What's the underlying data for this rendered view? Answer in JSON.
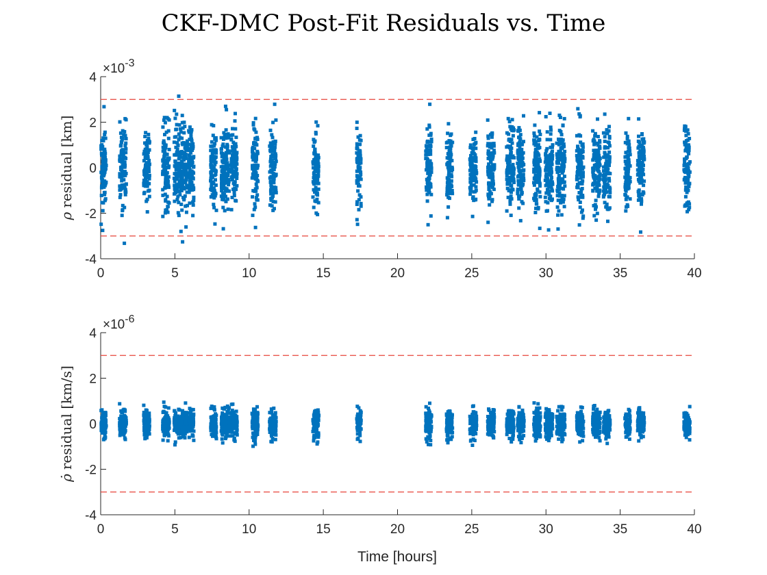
{
  "figure": {
    "title": "CKF-DMC Post-Fit Residuals vs. Time",
    "xlabel": "Time [hours]"
  },
  "colors": {
    "points": "#0072bd",
    "bounds": "#e8433a",
    "axes": "#262626"
  },
  "chart_data": [
    {
      "type": "scatter",
      "name": "range-residual",
      "ylabel": "ρ residual [km]",
      "ylabel_symbol": "ρ",
      "ylabel_text": "residual [km]",
      "exponent_label": "×10",
      "exponent_power": "-3",
      "scale": 0.001,
      "xlim": [
        0,
        40
      ],
      "ylim": [
        -4,
        4
      ],
      "xticks": [
        0,
        5,
        10,
        15,
        20,
        25,
        30,
        35,
        40
      ],
      "yticks": [
        -4,
        -2,
        0,
        2,
        4
      ],
      "bounds": [
        3,
        -3
      ],
      "pass_times_hours": [
        0.2,
        1.5,
        3.1,
        4.4,
        5.4,
        6.1,
        7.6,
        8.4,
        9.0,
        10.4,
        11.6,
        14.5,
        17.4,
        22.1,
        23.5,
        25.1,
        26.3,
        27.6,
        28.3,
        29.4,
        30.2,
        31.0,
        32.3,
        33.4,
        34.1,
        35.5,
        36.4,
        39.5
      ],
      "pass_widths_hours": [
        0.35,
        0.45,
        0.4,
        0.45,
        0.9,
        0.35,
        0.4,
        0.55,
        0.4,
        0.4,
        0.45,
        0.4,
        0.3,
        0.4,
        0.4,
        0.45,
        0.45,
        0.5,
        0.45,
        0.45,
        0.5,
        0.55,
        0.45,
        0.5,
        0.45,
        0.35,
        0.45,
        0.4
      ],
      "spread_sigma": 0.9,
      "min_y": -3.5,
      "max_y": 3.3
    },
    {
      "type": "scatter",
      "name": "range-rate-residual",
      "ylabel": "ρ̇ residual [km/s]",
      "ylabel_symbol": "ρ̇",
      "ylabel_text": "residual [km/s]",
      "exponent_label": "×10",
      "exponent_power": "-6",
      "scale": 1e-06,
      "xlim": [
        0,
        40
      ],
      "ylim": [
        -4,
        4
      ],
      "xticks": [
        0,
        5,
        10,
        15,
        20,
        25,
        30,
        35,
        40
      ],
      "yticks": [
        -4,
        -2,
        0,
        2,
        4
      ],
      "bounds": [
        3,
        -3
      ],
      "pass_times_hours": [
        0.2,
        1.5,
        3.1,
        4.4,
        5.4,
        6.1,
        7.6,
        8.4,
        9.0,
        10.4,
        11.6,
        14.5,
        17.4,
        22.1,
        23.5,
        25.1,
        26.3,
        27.6,
        28.3,
        29.4,
        30.2,
        31.0,
        32.3,
        33.4,
        34.1,
        35.5,
        36.4,
        39.5
      ],
      "pass_widths_hours": [
        0.35,
        0.45,
        0.4,
        0.45,
        0.9,
        0.35,
        0.4,
        0.55,
        0.4,
        0.4,
        0.45,
        0.4,
        0.3,
        0.4,
        0.4,
        0.45,
        0.45,
        0.5,
        0.45,
        0.45,
        0.5,
        0.55,
        0.45,
        0.5,
        0.45,
        0.35,
        0.45,
        0.4
      ],
      "spread_sigma": 0.3,
      "min_y": -1.3,
      "max_y": 1.2
    }
  ]
}
